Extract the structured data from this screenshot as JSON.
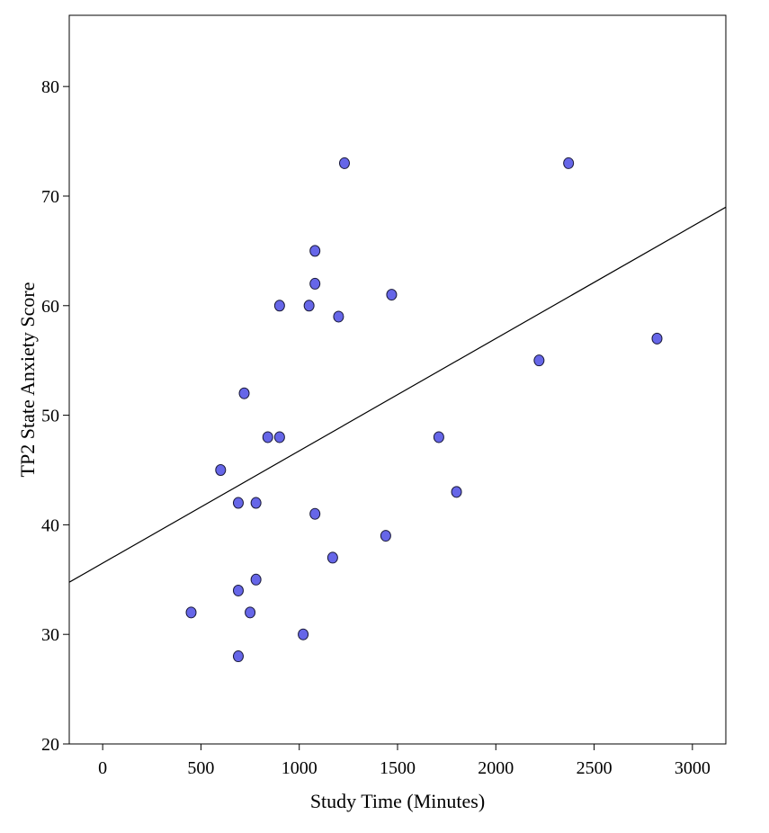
{
  "chart_data": {
    "type": "scatter",
    "title": "",
    "xlabel": "Study Time (Minutes)",
    "ylabel": "TP2 State Anxiety Score",
    "xlim": [
      -170,
      3170
    ],
    "ylim": [
      20,
      86.5
    ],
    "xticks": [
      0,
      500,
      1000,
      1500,
      2000,
      2500,
      3000
    ],
    "yticks": [
      20,
      30,
      40,
      50,
      60,
      70,
      80
    ],
    "grid": false,
    "legend": "none",
    "colors": {
      "point_fill": "#6666e8",
      "point_stroke": "#1a1a3a",
      "line": "#000000"
    },
    "points": [
      {
        "x": 450,
        "y": 32
      },
      {
        "x": 600,
        "y": 45
      },
      {
        "x": 690,
        "y": 42
      },
      {
        "x": 690,
        "y": 34
      },
      {
        "x": 690,
        "y": 28
      },
      {
        "x": 720,
        "y": 52
      },
      {
        "x": 750,
        "y": 32
      },
      {
        "x": 780,
        "y": 42
      },
      {
        "x": 780,
        "y": 35
      },
      {
        "x": 840,
        "y": 48
      },
      {
        "x": 900,
        "y": 60
      },
      {
        "x": 900,
        "y": 48
      },
      {
        "x": 1020,
        "y": 30
      },
      {
        "x": 1050,
        "y": 60
      },
      {
        "x": 1080,
        "y": 65
      },
      {
        "x": 1080,
        "y": 62
      },
      {
        "x": 1080,
        "y": 41
      },
      {
        "x": 1170,
        "y": 37
      },
      {
        "x": 1200,
        "y": 59
      },
      {
        "x": 1230,
        "y": 73
      },
      {
        "x": 1440,
        "y": 39
      },
      {
        "x": 1470,
        "y": 61
      },
      {
        "x": 1710,
        "y": 48
      },
      {
        "x": 1800,
        "y": 43
      },
      {
        "x": 2220,
        "y": 55
      },
      {
        "x": 2370,
        "y": 73
      },
      {
        "x": 2820,
        "y": 57
      }
    ],
    "fit_line": {
      "type": "linear",
      "intercept": 36.5,
      "slope": 0.01025
    }
  }
}
